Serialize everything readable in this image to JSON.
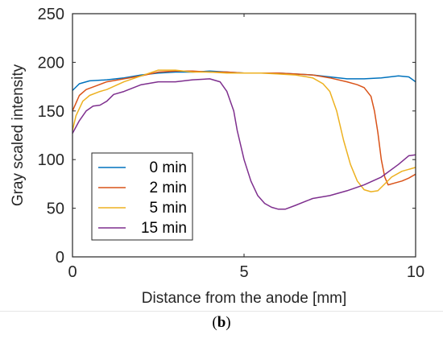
{
  "panel_label": {
    "open": "(",
    "letter": "b",
    "close": ")"
  },
  "chart_data": {
    "type": "line",
    "title": "",
    "xlabel": "Distance from the anode [mm]",
    "ylabel": "Gray scaled intensity",
    "xlim": [
      0,
      10
    ],
    "ylim": [
      0,
      250
    ],
    "xticks": [
      0,
      5,
      10
    ],
    "yticks": [
      0,
      50,
      100,
      150,
      200,
      250
    ],
    "grid": false,
    "legend_placement": "lower-left",
    "series": [
      {
        "name": "0 min",
        "color": "#0072BD",
        "x": [
          0,
          0.2,
          0.5,
          1,
          1.5,
          2,
          2.5,
          3,
          3.5,
          4,
          4.5,
          5,
          5.5,
          6,
          6.5,
          7,
          7.5,
          8,
          8.5,
          9,
          9.5,
          9.8,
          10
        ],
        "y": [
          171,
          178,
          181,
          182,
          184,
          187,
          189,
          190,
          190,
          191,
          190,
          189,
          189,
          189,
          188,
          187,
          185,
          183,
          183,
          184,
          186,
          185,
          180
        ]
      },
      {
        "name": "2 min",
        "color": "#D95319",
        "x": [
          0,
          0.1,
          0.2,
          0.4,
          0.7,
          1,
          1.5,
          2,
          2.5,
          3,
          3.5,
          4,
          4.5,
          5,
          5.5,
          6,
          6.5,
          7,
          7.5,
          8,
          8.3,
          8.5,
          8.7,
          8.8,
          8.9,
          9.0,
          9.1,
          9.2,
          9.4,
          9.6,
          9.8,
          10
        ],
        "y": [
          150,
          158,
          166,
          172,
          176,
          180,
          183,
          186,
          190,
          191,
          191,
          190,
          190,
          189,
          189,
          189,
          188,
          187,
          184,
          180,
          177,
          174,
          165,
          150,
          128,
          100,
          82,
          74,
          76,
          78,
          81,
          85
        ]
      },
      {
        "name": "5 min",
        "color": "#EDB120",
        "x": [
          0,
          0.1,
          0.3,
          0.5,
          0.8,
          1,
          1.5,
          2,
          2.5,
          3,
          3.5,
          4,
          4.5,
          5,
          5.5,
          6,
          6.5,
          7,
          7.3,
          7.5,
          7.7,
          7.9,
          8.1,
          8.3,
          8.5,
          8.7,
          8.9,
          9.1,
          9.3,
          9.6,
          10
        ],
        "y": [
          130,
          145,
          160,
          166,
          170,
          172,
          180,
          186,
          192,
          192,
          190,
          190,
          189,
          189,
          189,
          188,
          187,
          184,
          178,
          170,
          150,
          120,
          95,
          78,
          69,
          67,
          68,
          75,
          82,
          88,
          92
        ]
      },
      {
        "name": "15 min",
        "color": "#7E2F8E",
        "x": [
          0,
          0.2,
          0.4,
          0.6,
          0.8,
          1,
          1.2,
          1.5,
          2,
          2.5,
          3,
          3.5,
          4,
          4.3,
          4.5,
          4.7,
          4.8,
          5,
          5.2,
          5.4,
          5.6,
          5.8,
          6,
          6.2,
          6.5,
          7,
          7.5,
          8,
          8.5,
          9,
          9.5,
          9.8,
          10
        ],
        "y": [
          127,
          140,
          150,
          155,
          156,
          160,
          167,
          170,
          177,
          180,
          180,
          182,
          183,
          180,
          170,
          150,
          130,
          100,
          78,
          63,
          55,
          51,
          49,
          49,
          53,
          60,
          63,
          68,
          74,
          82,
          95,
          104,
          105
        ]
      }
    ]
  }
}
